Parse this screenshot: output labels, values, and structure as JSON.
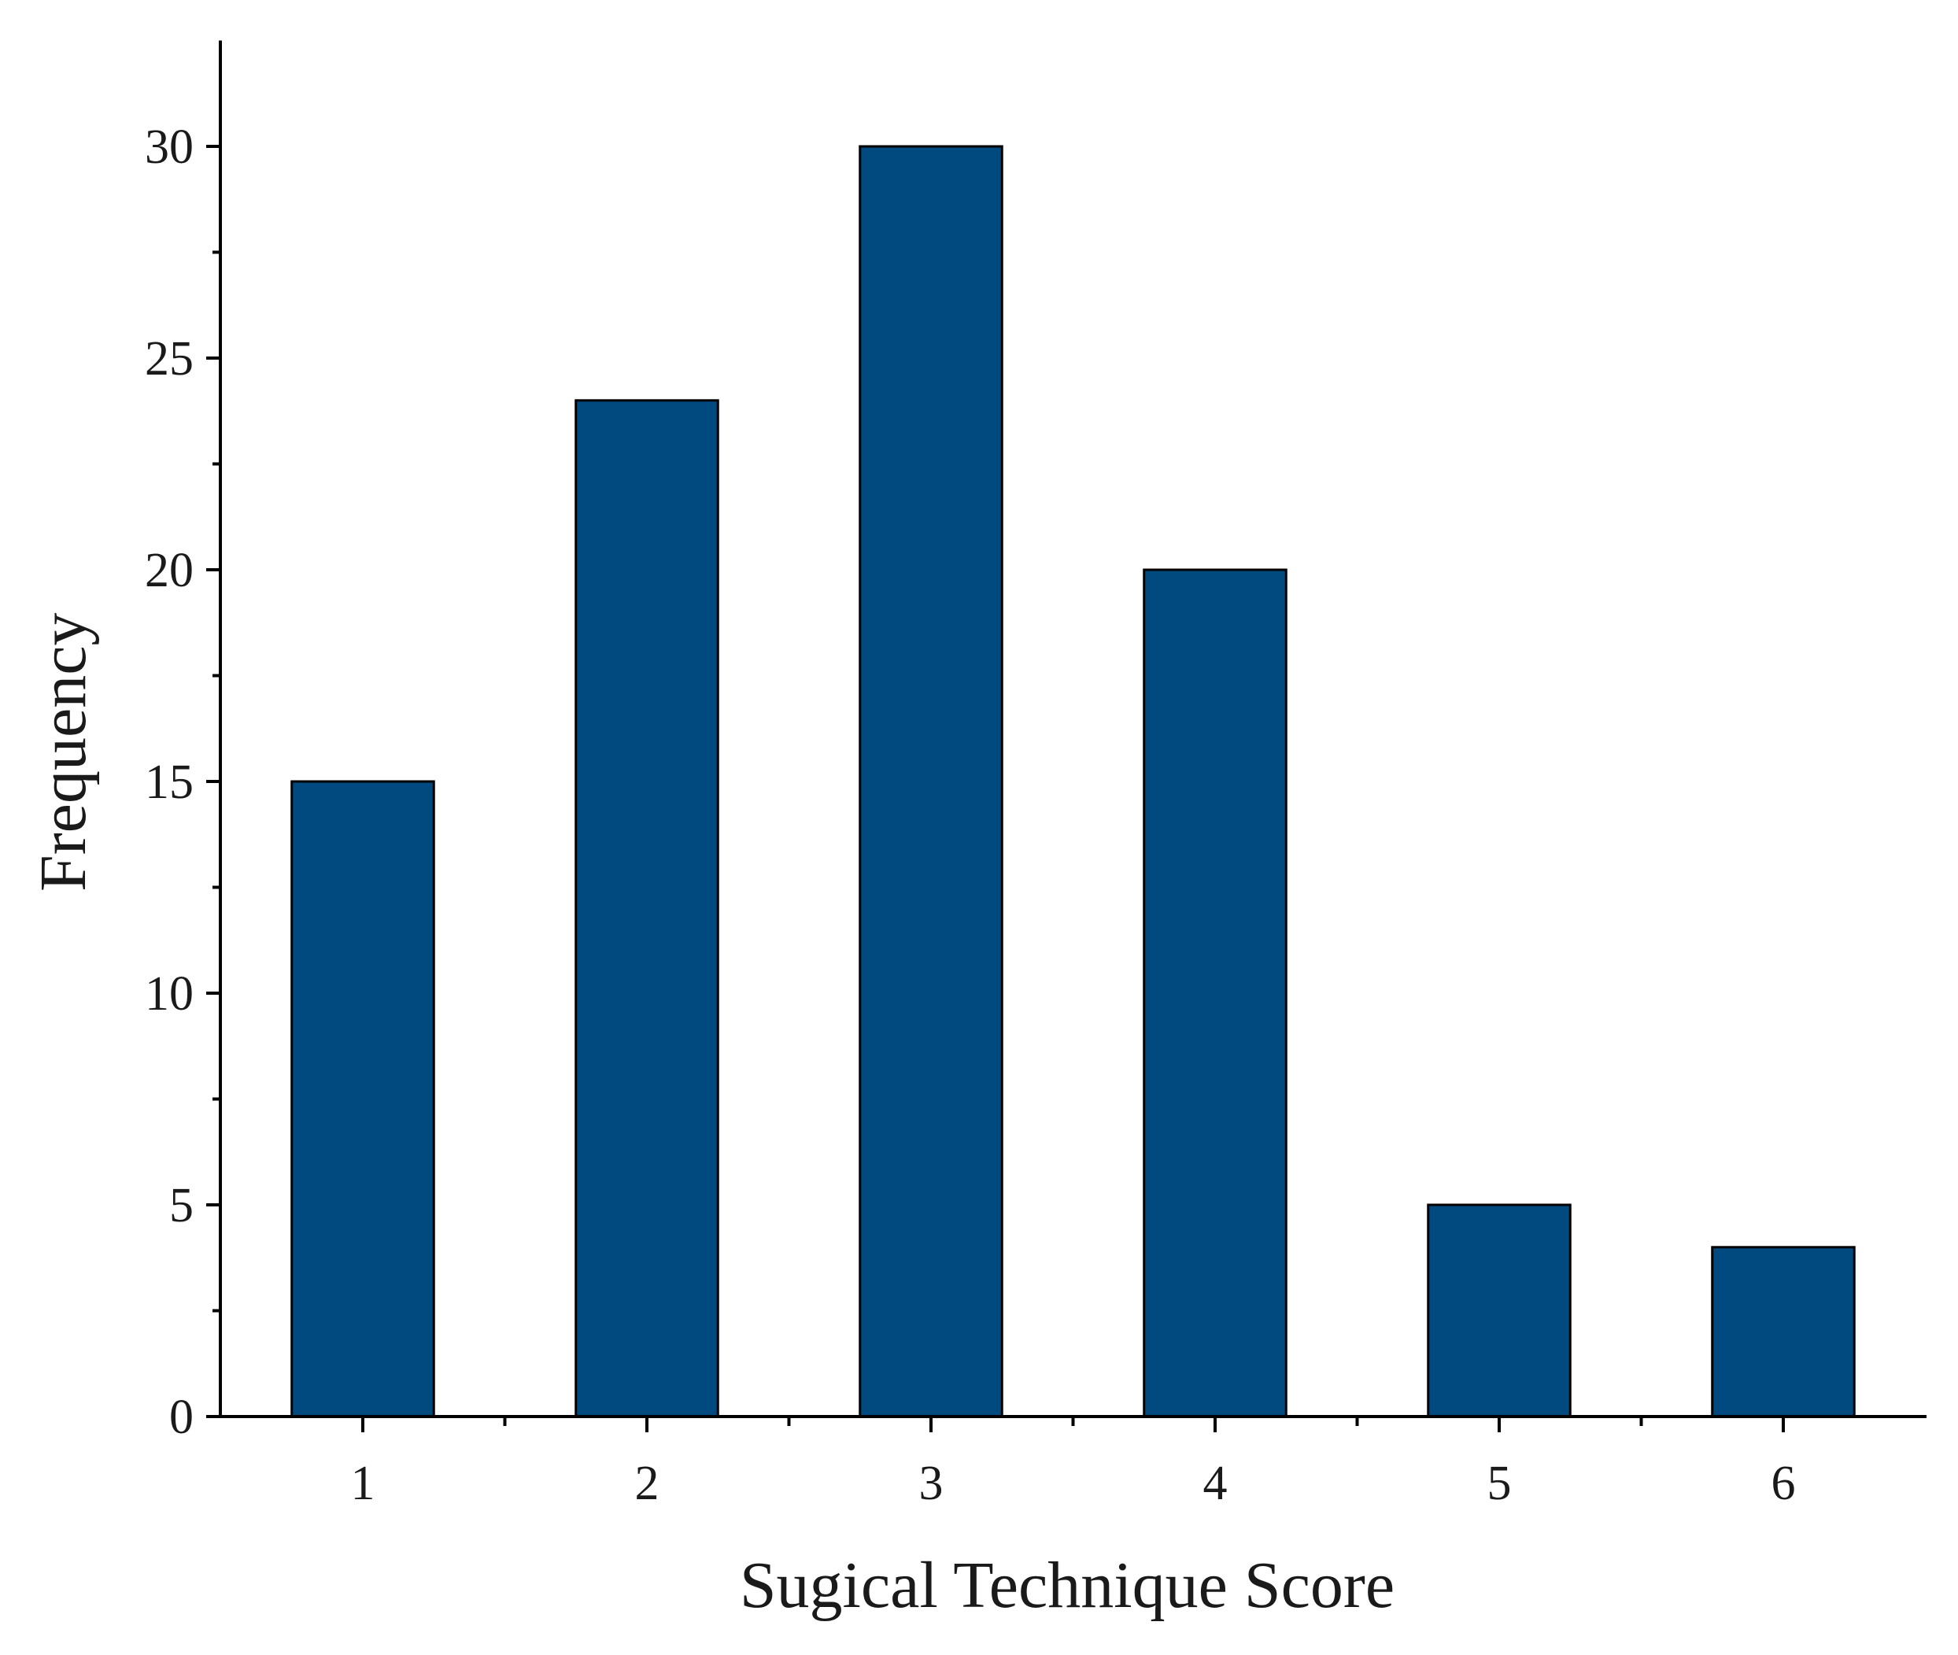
{
  "chart_data": {
    "type": "bar",
    "categories": [
      "1",
      "2",
      "3",
      "4",
      "5",
      "6"
    ],
    "values": [
      15,
      24,
      30,
      20,
      5,
      4
    ],
    "title": "",
    "xlabel": "Sugical Technique Score",
    "ylabel": "Frequency",
    "ylim": [
      0,
      32.5
    ],
    "xlim": [
      0.5,
      6.5
    ],
    "yticks": [
      0,
      5,
      10,
      15,
      20,
      25,
      30
    ],
    "y_minor_step": 2.5,
    "x_minor_ticks": [
      1.5,
      2.5,
      3.5,
      4.5,
      5.5
    ],
    "bar_width": 0.5,
    "bar_color": "#004a80",
    "bar_edge_color": "#000000",
    "grid": false,
    "legend": "none"
  }
}
